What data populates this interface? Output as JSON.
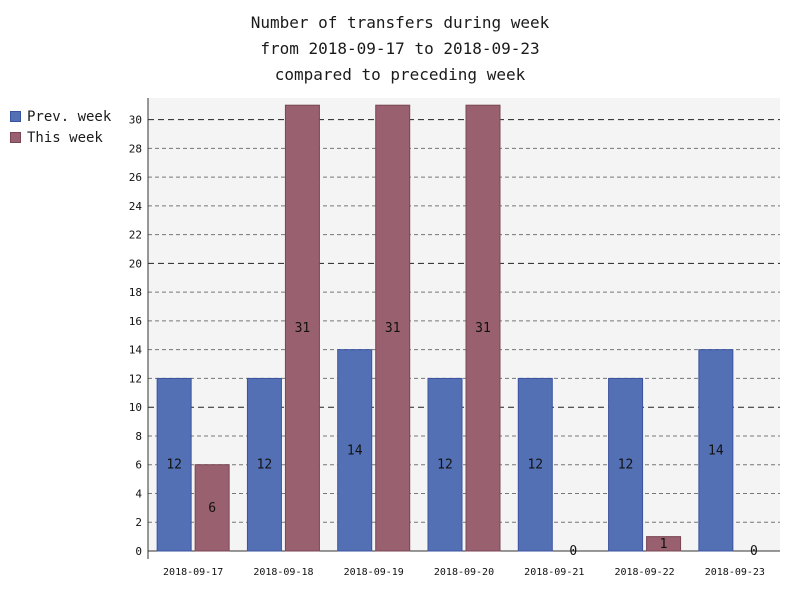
{
  "chart_data": {
    "type": "bar",
    "title": [
      "Number of transfers during week",
      "from 2018-09-17 to 2018-09-23",
      "compared to preceding week"
    ],
    "categories": [
      "2018-09-17",
      "2018-09-18",
      "2018-09-19",
      "2018-09-20",
      "2018-09-21",
      "2018-09-22",
      "2018-09-23"
    ],
    "series": [
      {
        "name": "Prev. week",
        "values": [
          12,
          12,
          14,
          12,
          12,
          12,
          14
        ],
        "color": "#5470b4",
        "edge": "#3a52a0"
      },
      {
        "name": "This week",
        "values": [
          6,
          31,
          31,
          31,
          0,
          1,
          0
        ],
        "color": "#99606f",
        "edge": "#7a4656"
      }
    ],
    "ylim": [
      0,
      31.5
    ],
    "yticks": [
      0,
      2,
      4,
      6,
      8,
      10,
      12,
      14,
      16,
      18,
      20,
      22,
      24,
      26,
      28,
      30
    ],
    "major_grid": [
      10,
      20,
      30
    ],
    "grid": true,
    "legend_position": "top-left-outside",
    "background": "#f4f4f4"
  }
}
